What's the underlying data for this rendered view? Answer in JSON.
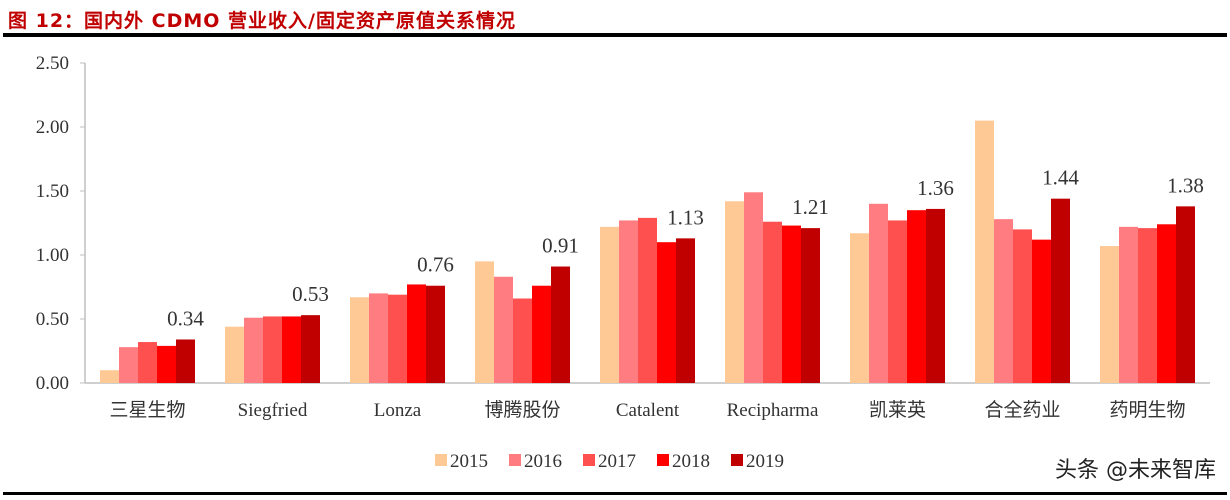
{
  "header": {
    "title": "图 12：国内外 CDMO 营业收入/固定资产原值关系情况"
  },
  "watermark": "头条 @未来智库",
  "chart_data": {
    "type": "bar",
    "title": "",
    "xlabel": "",
    "ylabel": "",
    "ylim": [
      0,
      2.5
    ],
    "yticks": [
      "0.00",
      "0.50",
      "1.00",
      "1.50",
      "2.00",
      "2.50"
    ],
    "grid": false,
    "legend_position": "bottom",
    "categories": [
      "三星生物",
      "Siegfried",
      "Lonza",
      "博腾股份",
      "Catalent",
      "Recipharma",
      "凯莱英",
      "合全药业",
      "药明生物"
    ],
    "series": [
      {
        "name": "2015",
        "color": "#ffc996",
        "values": [
          0.1,
          0.44,
          0.67,
          0.95,
          1.22,
          1.42,
          1.17,
          2.05,
          1.07
        ]
      },
      {
        "name": "2016",
        "color": "#ff7c80",
        "values": [
          0.28,
          0.51,
          0.7,
          0.83,
          1.27,
          1.49,
          1.4,
          1.28,
          1.22
        ]
      },
      {
        "name": "2017",
        "color": "#ff5050",
        "values": [
          0.32,
          0.52,
          0.69,
          0.66,
          1.29,
          1.26,
          1.27,
          1.2,
          1.21
        ]
      },
      {
        "name": "2018",
        "color": "#ff0000",
        "values": [
          0.29,
          0.52,
          0.77,
          0.76,
          1.1,
          1.23,
          1.35,
          1.12,
          1.24
        ]
      },
      {
        "name": "2019",
        "color": "#c00000",
        "values": [
          0.34,
          0.53,
          0.76,
          0.91,
          1.13,
          1.21,
          1.36,
          1.44,
          1.38
        ]
      }
    ],
    "data_labels": [
      "0.34",
      "0.53",
      "0.76",
      "0.91",
      "1.13",
      "1.21",
      "1.36",
      "1.44",
      "1.38"
    ]
  }
}
